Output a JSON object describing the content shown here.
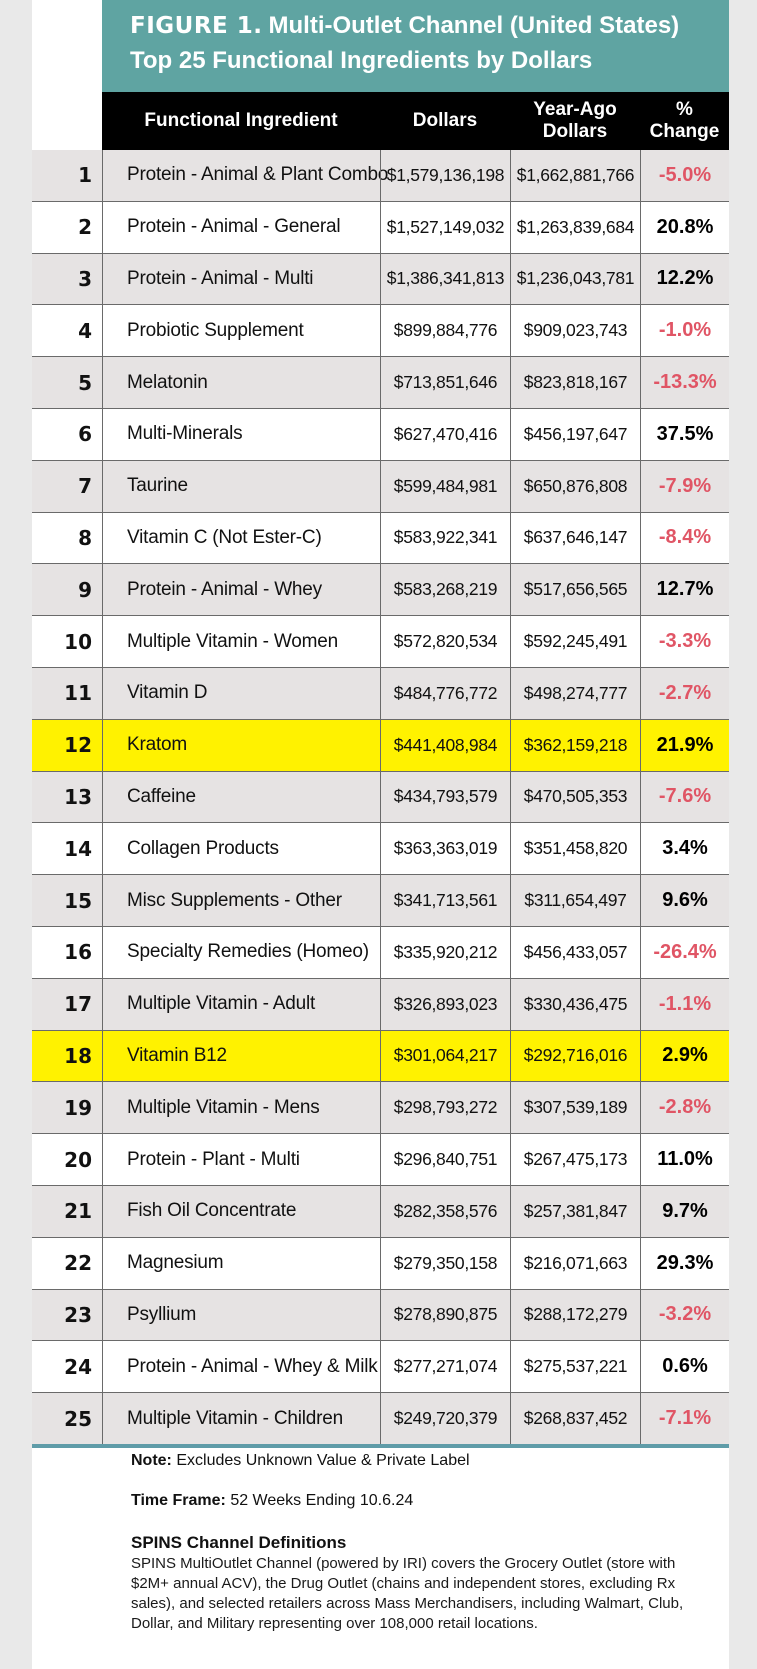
{
  "figure": {
    "label": "FIGURE 1.",
    "title_line1": "Multi-Outlet Channel (United States)",
    "title_line2": "Top 25 Functional Ingredients by Dollars"
  },
  "columns": {
    "ingredient": "Functional Ingredient",
    "dollars": "Dollars",
    "year_ago_line1": "Year-Ago",
    "year_ago_line2": "Dollars",
    "change_line1": "%",
    "change_line2": "Change"
  },
  "rows": [
    {
      "rank": "1",
      "ingredient": "Protein - Animal & Plant Combo",
      "dollars": "$1,579,136,198",
      "year_ago": "$1,662,881,766",
      "change": "-5.0%"
    },
    {
      "rank": "2",
      "ingredient": "Protein - Animal - General",
      "dollars": "$1,527,149,032",
      "year_ago": "$1,263,839,684",
      "change": "20.8%"
    },
    {
      "rank": "3",
      "ingredient": "Protein - Animal - Multi",
      "dollars": "$1,386,341,813",
      "year_ago": "$1,236,043,781",
      "change": "12.2%"
    },
    {
      "rank": "4",
      "ingredient": "Probiotic Supplement",
      "dollars": "$899,884,776",
      "year_ago": "$909,023,743",
      "change": "-1.0%"
    },
    {
      "rank": "5",
      "ingredient": "Melatonin",
      "dollars": "$713,851,646",
      "year_ago": "$823,818,167",
      "change": "-13.3%"
    },
    {
      "rank": "6",
      "ingredient": "Multi-Minerals",
      "dollars": "$627,470,416",
      "year_ago": "$456,197,647",
      "change": "37.5%"
    },
    {
      "rank": "7",
      "ingredient": "Taurine",
      "dollars": "$599,484,981",
      "year_ago": "$650,876,808",
      "change": "-7.9%"
    },
    {
      "rank": "8",
      "ingredient": "Vitamin C (Not Ester-C)",
      "dollars": "$583,922,341",
      "year_ago": "$637,646,147",
      "change": "-8.4%"
    },
    {
      "rank": "9",
      "ingredient": "Protein - Animal - Whey",
      "dollars": "$583,268,219",
      "year_ago": "$517,656,565",
      "change": "12.7%"
    },
    {
      "rank": "10",
      "ingredient": "Multiple Vitamin - Women",
      "dollars": "$572,820,534",
      "year_ago": "$592,245,491",
      "change": "-3.3%"
    },
    {
      "rank": "11",
      "ingredient": "Vitamin D",
      "dollars": "$484,776,772",
      "year_ago": "$498,274,777",
      "change": "-2.7%"
    },
    {
      "rank": "12",
      "ingredient": "Kratom",
      "dollars": "$441,408,984",
      "year_ago": "$362,159,218",
      "change": "21.9%",
      "highlight": true
    },
    {
      "rank": "13",
      "ingredient": "Caffeine",
      "dollars": "$434,793,579",
      "year_ago": "$470,505,353",
      "change": "-7.6%"
    },
    {
      "rank": "14",
      "ingredient": "Collagen Products",
      "dollars": "$363,363,019",
      "year_ago": "$351,458,820",
      "change": "3.4%"
    },
    {
      "rank": "15",
      "ingredient": "Misc Supplements - Other",
      "dollars": "$341,713,561",
      "year_ago": "$311,654,497",
      "change": "9.6%"
    },
    {
      "rank": "16",
      "ingredient": "Specialty Remedies (Homeo)",
      "dollars": "$335,920,212",
      "year_ago": "$456,433,057",
      "change": "-26.4%"
    },
    {
      "rank": "17",
      "ingredient": "Multiple Vitamin - Adult",
      "dollars": "$326,893,023",
      "year_ago": "$330,436,475",
      "change": "-1.1%"
    },
    {
      "rank": "18",
      "ingredient": "Vitamin B12",
      "dollars": "$301,064,217",
      "year_ago": "$292,716,016",
      "change": "2.9%",
      "highlight": true
    },
    {
      "rank": "19",
      "ingredient": "Multiple Vitamin - Mens",
      "dollars": "$298,793,272",
      "year_ago": "$307,539,189",
      "change": "-2.8%"
    },
    {
      "rank": "20",
      "ingredient": "Protein - Plant - Multi",
      "dollars": "$296,840,751",
      "year_ago": "$267,475,173",
      "change": "11.0%"
    },
    {
      "rank": "21",
      "ingredient": "Fish Oil Concentrate",
      "dollars": "$282,358,576",
      "year_ago": "$257,381,847",
      "change": "9.7%"
    },
    {
      "rank": "22",
      "ingredient": "Magnesium",
      "dollars": "$279,350,158",
      "year_ago": "$216,071,663",
      "change": "29.3%"
    },
    {
      "rank": "23",
      "ingredient": "Psyllium",
      "dollars": "$278,890,875",
      "year_ago": "$288,172,279",
      "change": "-3.2%"
    },
    {
      "rank": "24",
      "ingredient": "Protein - Animal - Whey & Milk",
      "dollars": "$277,271,074",
      "year_ago": "$275,537,221",
      "change": "0.6%"
    },
    {
      "rank": "25",
      "ingredient": "Multiple Vitamin - Children",
      "dollars": "$249,720,379",
      "year_ago": "$268,837,452",
      "change": "-7.1%"
    }
  ],
  "notes": {
    "note_label": "Note:",
    "note_text": "Excludes Unknown Value & Private Label",
    "timeframe_label": "Time Frame:",
    "timeframe_text": "52 Weeks Ending 10.6.24",
    "spins_title": "SPINS Channel Definitions",
    "spins_body": "SPINS MultiOutlet Channel (powered by IRI) covers the Grocery Outlet (store with $2M+ annual ACV), the Drug Outlet (chains and independent stores, excluding Rx sales), and selected retailers across Mass Merchandisers, including Walmart, Club, Dollar, and Military representing over 108,000 retail locations."
  },
  "colors": {
    "banner": "#5fa4a2",
    "header": "#000000",
    "highlight": "#fff200",
    "negative": "#e05565",
    "rule": "#5f9ca8"
  }
}
